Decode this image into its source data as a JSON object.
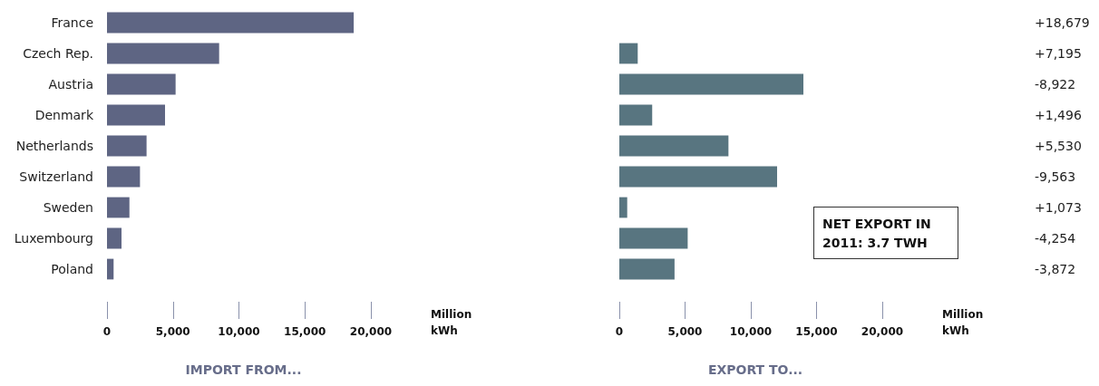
{
  "chart_data": [
    {
      "type": "bar",
      "orientation": "horizontal",
      "title": "IMPORT FROM...",
      "xlabel": "Million kWh",
      "categories": [
        "France",
        "Czech Rep.",
        "Austria",
        "Denmark",
        "Netherlands",
        "Switzerland",
        "Sweden",
        "Luxembourg",
        "Poland"
      ],
      "values": [
        18700,
        8500,
        5200,
        4400,
        3000,
        2500,
        1700,
        1100,
        500
      ],
      "color": "#5e6583",
      "xlim": [
        0,
        20000
      ],
      "xticks": [
        0,
        {
          "value": 5000,
          "label": "5,000"
        },
        {
          "value": 10000,
          "label": "10,000"
        },
        {
          "value": 15000,
          "label": "15,000"
        },
        {
          "value": 20000,
          "label": "20,000"
        }
      ]
    },
    {
      "type": "bar",
      "orientation": "horizontal",
      "title": "EXPORT TO...",
      "xlabel": "Million kWh",
      "categories": [
        null,
        null,
        null,
        null,
        null,
        null,
        null,
        null,
        null
      ],
      "values": [
        0,
        1400,
        14000,
        2500,
        8300,
        12000,
        600,
        5200,
        4200
      ],
      "color": "#587580",
      "xlim": [
        0,
        20000
      ],
      "xticks": [
        0,
        {
          "value": 5000,
          "label": "5,000"
        },
        {
          "value": 10000,
          "label": "10,000"
        },
        {
          "value": 15000,
          "label": "15,000"
        },
        {
          "value": 20000,
          "label": "20,000"
        }
      ],
      "tick_labels": "x",
      "annotations": [
        "+18,679",
        "+7,195",
        "-8,922",
        "+1,496",
        "+5,530",
        "-9,563",
        "+1,073",
        "-4,254",
        "-3,872",
        "NET EXPORT IN 2011: 3.7 TWH"
      ]
    }
  ]
}
